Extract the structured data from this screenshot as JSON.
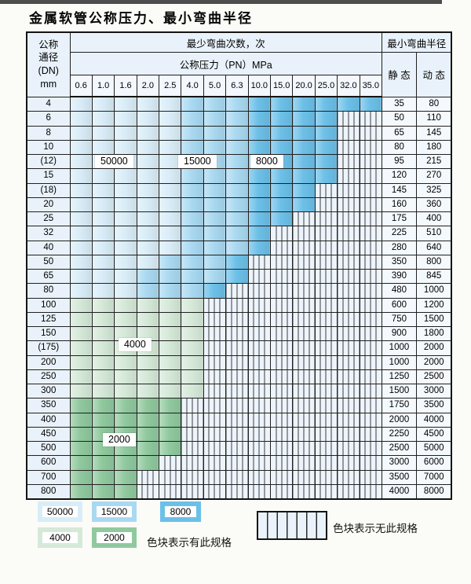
{
  "title": "金属软管公称压力、最小弯曲半径",
  "table": {
    "header": {
      "dn_lines": [
        "公称",
        "通径",
        "(DN)",
        "mm"
      ],
      "bend_cycles_label": "最少弯曲次数，次",
      "pressure_label": "公称压力（PN）MPa",
      "radius_label": "最小弯曲半径",
      "static_label": "静 态",
      "dynamic_label": "动 态",
      "pressures": [
        "0.6",
        "1.0",
        "1.6",
        "2.0",
        "2.5",
        "4.0",
        "5.0",
        "6.3",
        "10.0",
        "15.0",
        "20.0",
        "25.0",
        "32.0",
        "35.0"
      ]
    },
    "rows": [
      {
        "dn": "4",
        "zones": [
          1,
          1,
          1,
          1,
          1,
          2,
          2,
          2,
          3,
          3,
          3,
          3,
          3,
          3
        ],
        "static": "35",
        "dynamic": "80"
      },
      {
        "dn": "6",
        "zones": [
          1,
          1,
          1,
          1,
          1,
          2,
          2,
          2,
          3,
          3,
          3,
          3,
          0,
          0
        ],
        "static": "50",
        "dynamic": "110"
      },
      {
        "dn": "8",
        "zones": [
          1,
          1,
          1,
          1,
          1,
          2,
          2,
          2,
          3,
          3,
          3,
          3,
          0,
          0
        ],
        "static": "65",
        "dynamic": "145"
      },
      {
        "dn": "10",
        "zones": [
          1,
          1,
          1,
          1,
          1,
          2,
          2,
          2,
          3,
          3,
          3,
          3,
          0,
          0
        ],
        "static": "80",
        "dynamic": "180"
      },
      {
        "dn": "(12)",
        "zones": [
          1,
          1,
          1,
          1,
          1,
          2,
          2,
          2,
          3,
          3,
          3,
          3,
          0,
          0
        ],
        "static": "95",
        "dynamic": "215"
      },
      {
        "dn": "15",
        "zones": [
          1,
          1,
          1,
          1,
          1,
          2,
          2,
          2,
          3,
          3,
          3,
          3,
          0,
          0
        ],
        "static": "120",
        "dynamic": "270"
      },
      {
        "dn": "(18)",
        "zones": [
          1,
          1,
          1,
          1,
          1,
          2,
          2,
          2,
          3,
          3,
          3,
          0,
          0,
          0
        ],
        "static": "145",
        "dynamic": "325"
      },
      {
        "dn": "20",
        "zones": [
          1,
          1,
          1,
          1,
          1,
          2,
          2,
          2,
          3,
          3,
          3,
          0,
          0,
          0
        ],
        "static": "160",
        "dynamic": "360"
      },
      {
        "dn": "25",
        "zones": [
          1,
          1,
          1,
          1,
          1,
          2,
          2,
          2,
          3,
          3,
          0,
          0,
          0,
          0
        ],
        "static": "175",
        "dynamic": "400"
      },
      {
        "dn": "32",
        "zones": [
          1,
          1,
          1,
          1,
          1,
          2,
          2,
          2,
          3,
          0,
          0,
          0,
          0,
          0
        ],
        "static": "225",
        "dynamic": "510"
      },
      {
        "dn": "40",
        "zones": [
          1,
          1,
          1,
          1,
          1,
          2,
          2,
          2,
          3,
          0,
          0,
          0,
          0,
          0
        ],
        "static": "280",
        "dynamic": "640"
      },
      {
        "dn": "50",
        "zones": [
          1,
          1,
          1,
          1,
          2,
          2,
          2,
          3,
          0,
          0,
          0,
          0,
          0,
          0
        ],
        "static": "350",
        "dynamic": "800"
      },
      {
        "dn": "65",
        "zones": [
          1,
          1,
          1,
          2,
          2,
          2,
          2,
          3,
          0,
          0,
          0,
          0,
          0,
          0
        ],
        "static": "390",
        "dynamic": "845"
      },
      {
        "dn": "80",
        "zones": [
          1,
          1,
          1,
          2,
          2,
          2,
          3,
          0,
          0,
          0,
          0,
          0,
          0,
          0
        ],
        "static": "480",
        "dynamic": "1000"
      },
      {
        "dn": "100",
        "zones": [
          4,
          4,
          4,
          4,
          4,
          4,
          0,
          0,
          0,
          0,
          0,
          0,
          0,
          0
        ],
        "static": "600",
        "dynamic": "1200"
      },
      {
        "dn": "125",
        "zones": [
          4,
          4,
          4,
          4,
          4,
          4,
          0,
          0,
          0,
          0,
          0,
          0,
          0,
          0
        ],
        "static": "750",
        "dynamic": "1500"
      },
      {
        "dn": "150",
        "zones": [
          4,
          4,
          4,
          4,
          4,
          4,
          0,
          0,
          0,
          0,
          0,
          0,
          0,
          0
        ],
        "static": "900",
        "dynamic": "1800"
      },
      {
        "dn": "(175)",
        "zones": [
          4,
          4,
          4,
          4,
          4,
          4,
          0,
          0,
          0,
          0,
          0,
          0,
          0,
          0
        ],
        "static": "1000",
        "dynamic": "2000"
      },
      {
        "dn": "200",
        "zones": [
          4,
          4,
          4,
          4,
          4,
          4,
          0,
          0,
          0,
          0,
          0,
          0,
          0,
          0
        ],
        "static": "1000",
        "dynamic": "2000"
      },
      {
        "dn": "250",
        "zones": [
          4,
          4,
          4,
          4,
          4,
          4,
          0,
          0,
          0,
          0,
          0,
          0,
          0,
          0
        ],
        "static": "1250",
        "dynamic": "2500"
      },
      {
        "dn": "300",
        "zones": [
          4,
          4,
          4,
          4,
          4,
          4,
          0,
          0,
          0,
          0,
          0,
          0,
          0,
          0
        ],
        "static": "1500",
        "dynamic": "3000"
      },
      {
        "dn": "350",
        "zones": [
          5,
          5,
          5,
          5,
          5,
          0,
          0,
          0,
          0,
          0,
          0,
          0,
          0,
          0
        ],
        "static": "1750",
        "dynamic": "3500"
      },
      {
        "dn": "400",
        "zones": [
          5,
          5,
          5,
          5,
          5,
          0,
          0,
          0,
          0,
          0,
          0,
          0,
          0,
          0
        ],
        "static": "2000",
        "dynamic": "4000"
      },
      {
        "dn": "450",
        "zones": [
          5,
          5,
          5,
          5,
          5,
          0,
          0,
          0,
          0,
          0,
          0,
          0,
          0,
          0
        ],
        "static": "2250",
        "dynamic": "4500"
      },
      {
        "dn": "500",
        "zones": [
          5,
          5,
          5,
          5,
          5,
          0,
          0,
          0,
          0,
          0,
          0,
          0,
          0,
          0
        ],
        "static": "2500",
        "dynamic": "5000"
      },
      {
        "dn": "600",
        "zones": [
          5,
          5,
          5,
          5,
          0,
          0,
          0,
          0,
          0,
          0,
          0,
          0,
          0,
          0
        ],
        "static": "3000",
        "dynamic": "6000"
      },
      {
        "dn": "700",
        "zones": [
          5,
          5,
          5,
          0,
          0,
          0,
          0,
          0,
          0,
          0,
          0,
          0,
          0,
          0
        ],
        "static": "3500",
        "dynamic": "7000"
      },
      {
        "dn": "800",
        "zones": [
          5,
          5,
          5,
          0,
          0,
          0,
          0,
          0,
          0,
          0,
          0,
          0,
          0,
          0
        ],
        "static": "4000",
        "dynamic": "8000"
      }
    ]
  },
  "zone_colors": {
    "1": "#d9edf8",
    "2": "#a9d9f1",
    "3": "#6cc0e8",
    "4": "#d5e9d8",
    "5": "#90c99e"
  },
  "overlay_labels": [
    {
      "text": "50000"
    },
    {
      "text": "15000"
    },
    {
      "text": "8000"
    },
    {
      "text": "4000"
    },
    {
      "text": "2000"
    }
  ],
  "legend": {
    "items": [
      {
        "label": "50000",
        "zone": "1"
      },
      {
        "label": "15000",
        "zone": "2"
      },
      {
        "label": "8000",
        "zone": "3"
      },
      {
        "label": "4000",
        "zone": "4"
      },
      {
        "label": "2000",
        "zone": "5"
      }
    ],
    "has_spec_note": "色块表示有此规格",
    "no_spec_note": "色块表示无此规格"
  }
}
